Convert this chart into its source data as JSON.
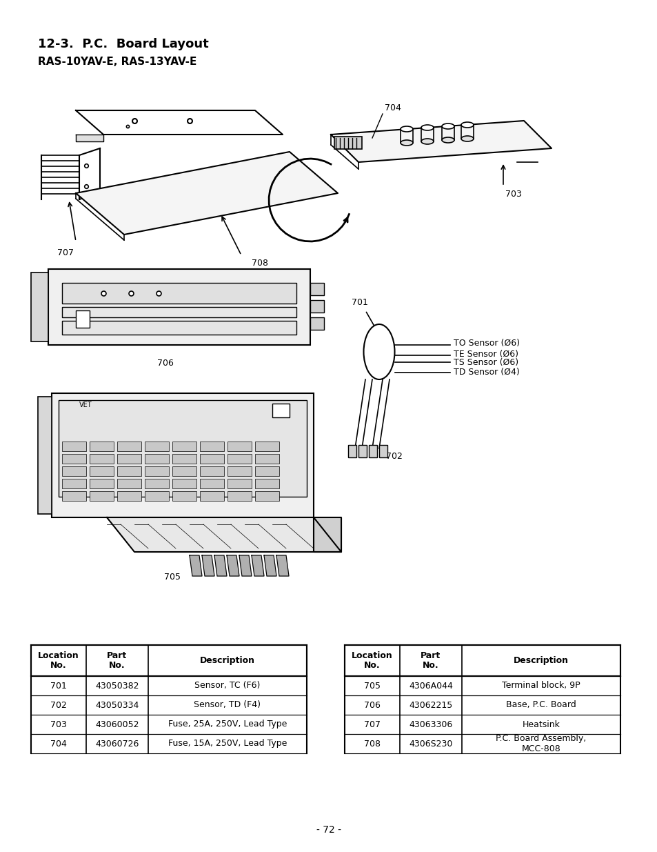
{
  "title": "12-3.  P.C.  Board Layout",
  "subtitle": "RAS-10YAV-E, RAS-13YAV-E",
  "page_number": "- 72 -",
  "background_color": "#ffffff",
  "table1": {
    "headers": [
      "Location\nNo.",
      "Part\nNo.",
      "Description"
    ],
    "rows": [
      [
        "701",
        "43050382",
        "Sensor, TC (F6)"
      ],
      [
        "702",
        "43050334",
        "Sensor, TD (F4)"
      ],
      [
        "703",
        "43060052",
        "Fuse, 25A, 250V, Lead Type"
      ],
      [
        "704",
        "43060726",
        "Fuse, 15A, 250V, Lead Type"
      ]
    ]
  },
  "table2": {
    "headers": [
      "Location\nNo.",
      "Part\nNo.",
      "Description"
    ],
    "rows": [
      [
        "705",
        "4306A044",
        "Terminal block, 9P"
      ],
      [
        "706",
        "43062215",
        "Base, P.C. Board"
      ],
      [
        "707",
        "43063306",
        "Heatsink"
      ],
      [
        "708",
        "4306S230",
        "P.C. Board Assembly,\nMCC-808"
      ]
    ]
  },
  "sensor_labels": [
    "TO Sensor (Ø6)",
    "TE Sensor (Ø6)",
    "TS Sensor (Ø6)",
    "TD Sensor (Ø4)"
  ],
  "part_labels": [
    "704",
    "703",
    "708",
    "707",
    "706",
    "705",
    "701",
    "702"
  ]
}
